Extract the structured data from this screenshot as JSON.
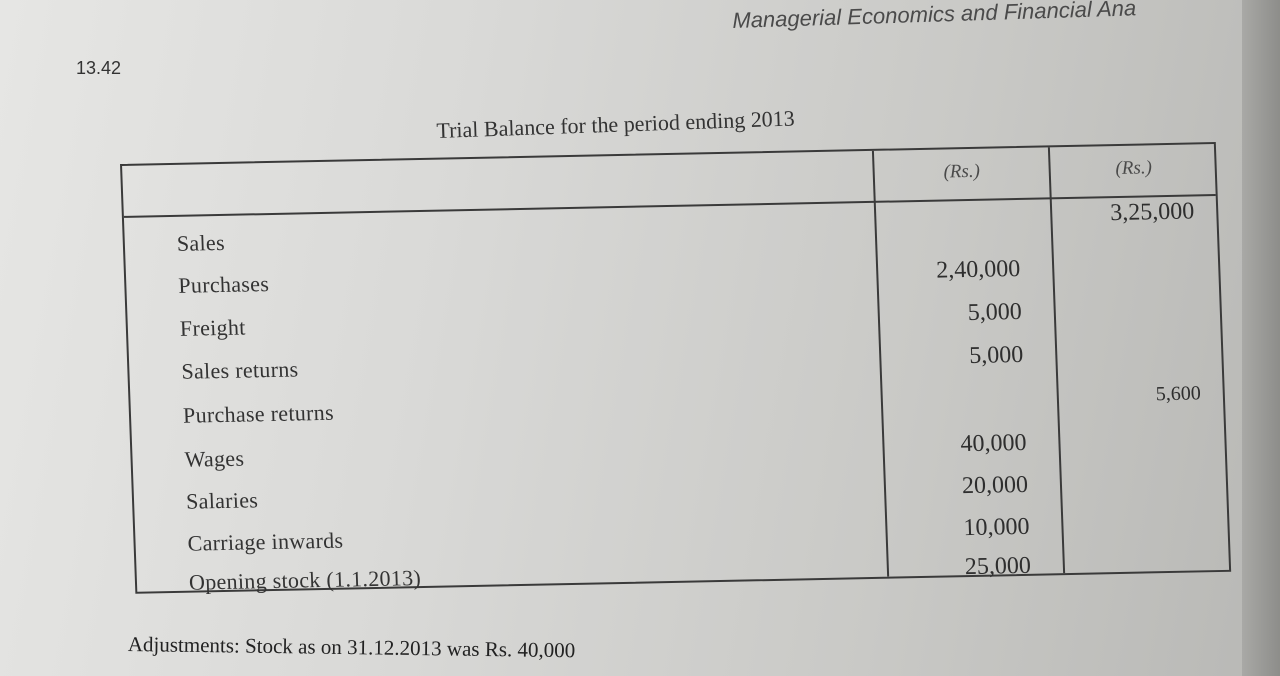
{
  "running_head": "Managerial Economics and Financial Ana",
  "page_number": "13.42",
  "table": {
    "title": "Trial Balance for the period ending 2013",
    "col_headers": [
      "(Rs.)",
      "(Rs.)"
    ],
    "rows": [
      {
        "label": "Sales",
        "debit": "",
        "credit": "3,25,000"
      },
      {
        "label": "Purchases",
        "debit": "2,40,000",
        "credit": ""
      },
      {
        "label": "Freight",
        "debit": "5,000",
        "credit": ""
      },
      {
        "label": "Sales returns",
        "debit": "5,000",
        "credit": ""
      },
      {
        "label": "Purchase  returns",
        "debit": "",
        "credit": "5,600"
      },
      {
        "label": "Wages",
        "debit": "40,000",
        "credit": ""
      },
      {
        "label": "Salaries",
        "debit": "20,000",
        "credit": ""
      },
      {
        "label": "Carriage inwards",
        "debit": "10,000",
        "credit": ""
      },
      {
        "label": "Opening stock (1.1.2013)",
        "debit": "25,000",
        "credit": ""
      }
    ]
  },
  "adjustments": "Adjustments: Stock as on 31.12.2013 was Rs. 40,000"
}
